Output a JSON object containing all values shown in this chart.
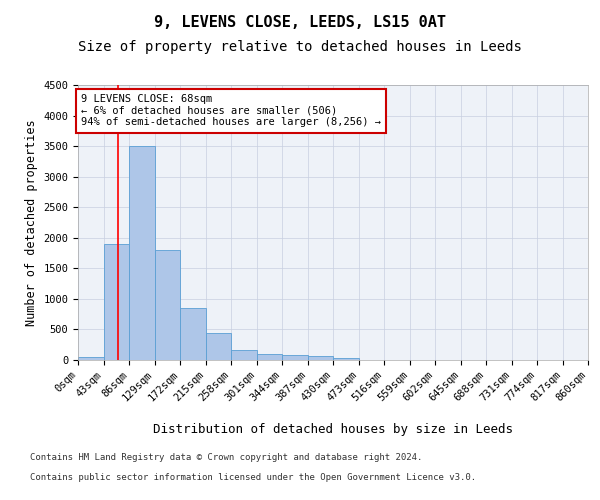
{
  "title": "9, LEVENS CLOSE, LEEDS, LS15 0AT",
  "subtitle": "Size of property relative to detached houses in Leeds",
  "xlabel": "Distribution of detached houses by size in Leeds",
  "ylabel": "Number of detached properties",
  "bin_labels": [
    "0sqm",
    "43sqm",
    "86sqm",
    "129sqm",
    "172sqm",
    "215sqm",
    "258sqm",
    "301sqm",
    "344sqm",
    "387sqm",
    "430sqm",
    "473sqm",
    "516sqm",
    "559sqm",
    "602sqm",
    "645sqm",
    "688sqm",
    "731sqm",
    "774sqm",
    "817sqm",
    "860sqm"
  ],
  "bar_values": [
    50,
    1900,
    3500,
    1800,
    850,
    450,
    160,
    100,
    75,
    60,
    35,
    0,
    0,
    0,
    0,
    0,
    0,
    0,
    0,
    0
  ],
  "bar_color": "#aec6e8",
  "bar_edge_color": "#5a9fd4",
  "red_line_x": 1.58,
  "annotation_text": "9 LEVENS CLOSE: 68sqm\n← 6% of detached houses are smaller (506)\n94% of semi-detached houses are larger (8,256) →",
  "annotation_box_color": "#ffffff",
  "annotation_box_edge_color": "#cc0000",
  "ylim": [
    0,
    4500
  ],
  "yticks": [
    0,
    500,
    1000,
    1500,
    2000,
    2500,
    3000,
    3500,
    4000,
    4500
  ],
  "plot_bg_color": "#eef2f8",
  "footer_line1": "Contains HM Land Registry data © Crown copyright and database right 2024.",
  "footer_line2": "Contains public sector information licensed under the Open Government Licence v3.0.",
  "title_fontsize": 11,
  "subtitle_fontsize": 10,
  "axis_label_fontsize": 9,
  "tick_fontsize": 7.5,
  "ylabel_fontsize": 8.5
}
